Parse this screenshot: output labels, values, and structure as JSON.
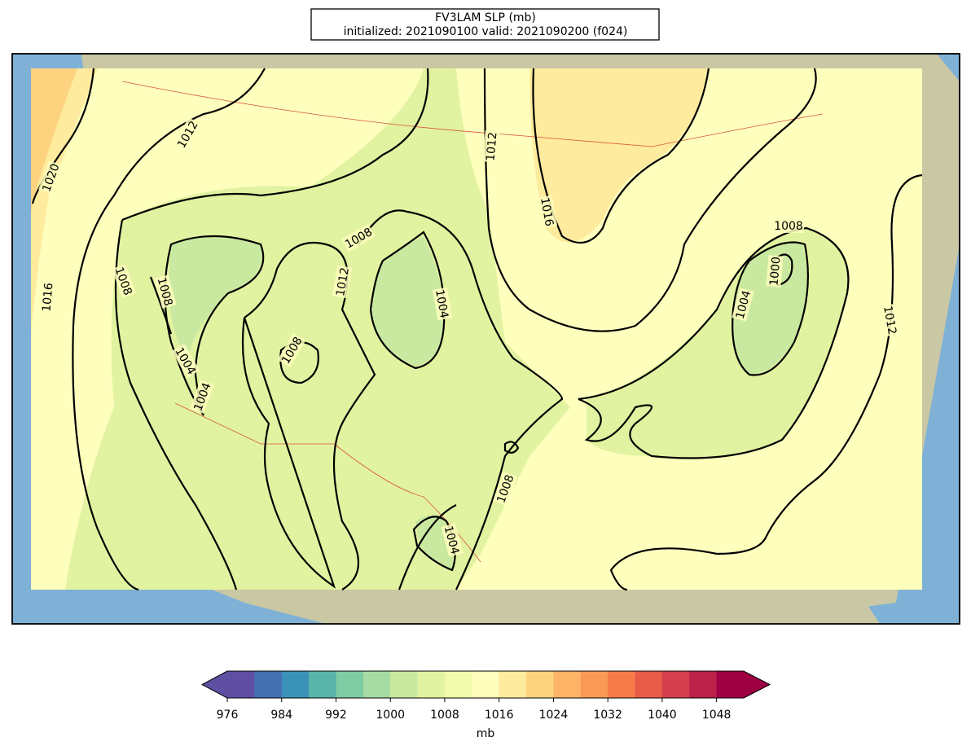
{
  "header": {
    "title": "FV3LAM SLP (mb)",
    "subtitle": "initialized: 2021090100 valid: 2021090200 (f024)"
  },
  "map": {
    "contour_labels": [
      1012,
      1020,
      1016,
      1008,
      1008,
      1004,
      1004,
      1008,
      1012,
      1008,
      1004,
      1012,
      1016,
      1008,
      1004,
      1000,
      1012,
      1008,
      1004
    ]
  },
  "colorbar": {
    "label": "mb",
    "xlim": [
      976,
      1052
    ],
    "ticks": [
      976,
      984,
      992,
      1000,
      1008,
      1016,
      1024,
      1032,
      1040,
      1048
    ],
    "colors": [
      "#5e4fa2",
      "#4470b1",
      "#3b92b8",
      "#59b4aa",
      "#7ecba4",
      "#a6dba4",
      "#cae9a0",
      "#e1f3a0",
      "#f2faac",
      "#fefebd",
      "#feeb9d",
      "#fdd380",
      "#fdb466",
      "#fa9856",
      "#f67b4a",
      "#e85b49",
      "#d5404e",
      "#bb2249",
      "#9e0142"
    ],
    "extend_colors": [
      "#5e4fa2",
      "#9e0142"
    ]
  }
}
